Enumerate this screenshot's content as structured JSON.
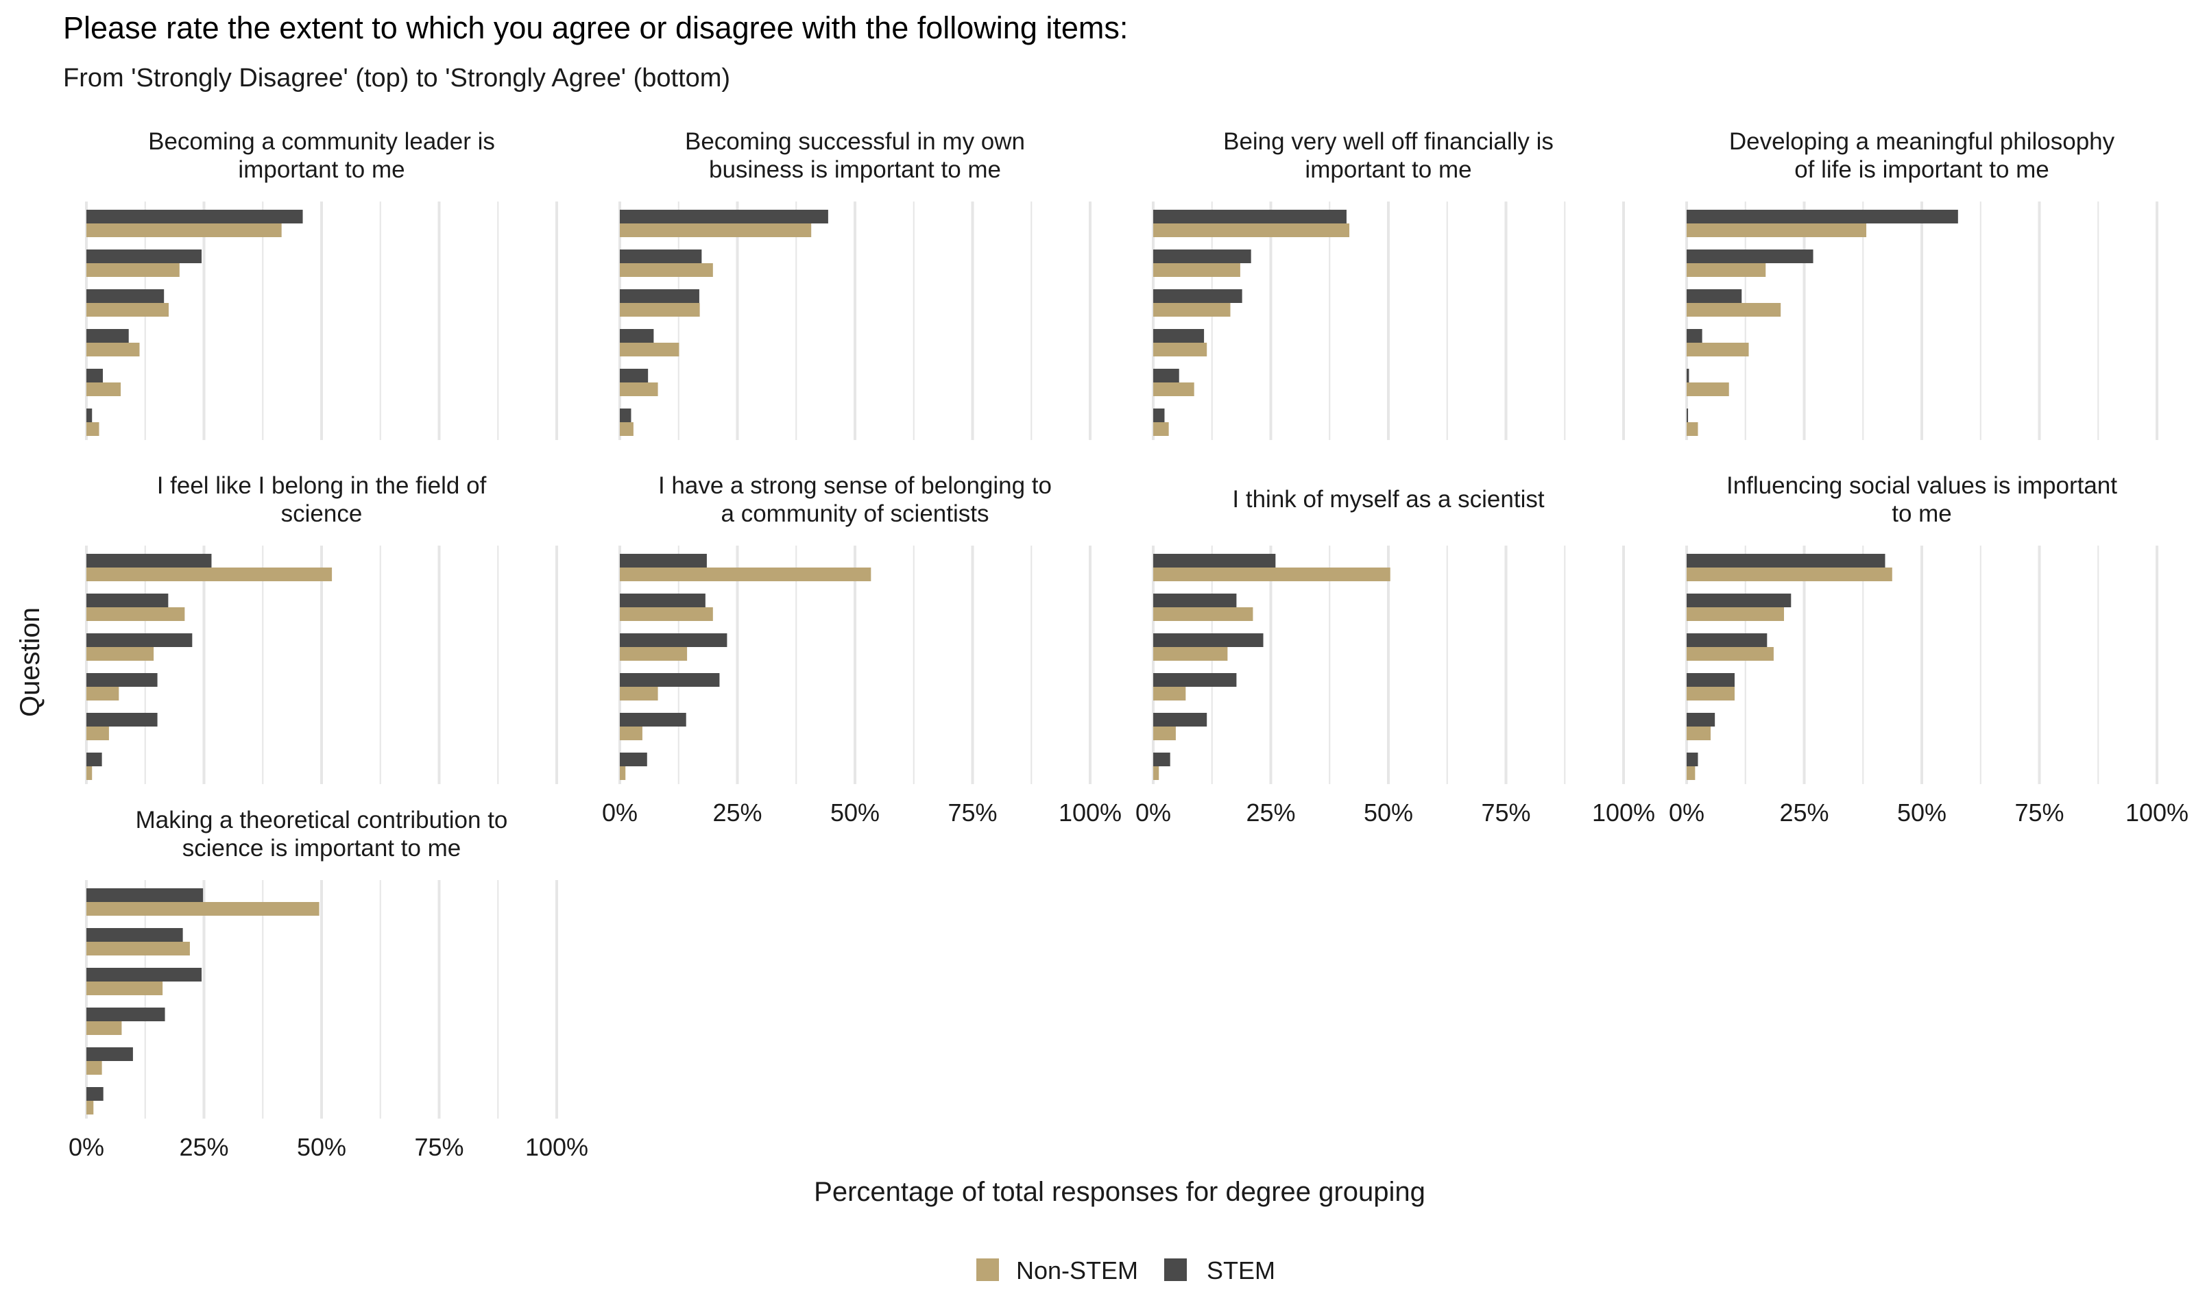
{
  "colors": {
    "Non-STEM": "#bba574",
    "STEM": "#4a4a4a",
    "grid": "#e6e6e6"
  },
  "chart_data": {
    "type": "bar",
    "orientation": "horizontal",
    "faceted": true,
    "title": "Please rate the extent to which you agree or disagree with the following items:",
    "subtitle": "From 'Strongly Disagree' (top) to 'Strongly Agree' (bottom)",
    "xlabel": "Percentage of total responses for degree grouping",
    "ylabel": "Question",
    "xlim": [
      0,
      100
    ],
    "x_ticks": [
      "0%",
      "25%",
      "50%",
      "75%",
      "100%"
    ],
    "grid": true,
    "legend": {
      "position": "bottom",
      "entries": [
        "Non-STEM",
        "STEM"
      ]
    },
    "response_levels": 6,
    "panels": [
      {
        "title": "Becoming a community leader is important to me",
        "title_lines": [
          "Becoming a community leader is",
          "important to me"
        ],
        "STEM": [
          46,
          24.5,
          16.5,
          9,
          3.5,
          1.2
        ],
        "Non-STEM": [
          41.5,
          19.8,
          17.5,
          11.3,
          7.3,
          2.7
        ]
      },
      {
        "title": "Becoming successful in my own business is important to me",
        "title_lines": [
          "Becoming successful in my own",
          "business is important to me"
        ],
        "STEM": [
          44.3,
          17.4,
          16.9,
          7.2,
          6,
          2.4
        ],
        "Non-STEM": [
          40.7,
          19.8,
          17,
          12.6,
          8.1,
          2.9
        ]
      },
      {
        "title": "Being very well off financially is important to me",
        "title_lines": [
          "Being very well off financially is",
          "important to me"
        ],
        "STEM": [
          41.1,
          20.8,
          18.9,
          10.8,
          5.5,
          2.4
        ],
        "Non-STEM": [
          41.7,
          18.5,
          16.4,
          11.4,
          8.7,
          3.3
        ]
      },
      {
        "title": "Developing a meaningful philosophy of life is important to me",
        "title_lines": [
          "Developing a meaningful philosophy",
          "of life is important to me"
        ],
        "STEM": [
          57.7,
          26.9,
          11.7,
          3.3,
          0.5,
          0.3
        ],
        "Non-STEM": [
          38.2,
          16.8,
          20,
          13.2,
          9,
          2.4
        ]
      },
      {
        "title": "I feel like I belong in the field of science",
        "title_lines": [
          "I feel like I belong in the field of",
          "science"
        ],
        "STEM": [
          26.6,
          17.4,
          22.5,
          15.1,
          15.1,
          3.3
        ],
        "Non-STEM": [
          52.2,
          20.9,
          14.3,
          6.9,
          4.8,
          1.2
        ]
      },
      {
        "title": "I have a strong sense of belonging to a community of scientists",
        "title_lines": [
          "I have a strong sense of belonging to",
          "a community of scientists"
        ],
        "STEM": [
          18.5,
          18.2,
          22.8,
          21.2,
          14.1,
          5.8
        ],
        "Non-STEM": [
          53.4,
          19.8,
          14.3,
          8.1,
          4.8,
          1.2
        ]
      },
      {
        "title": "I think of myself as a scientist",
        "title_lines": [
          "I think of myself as a scientist"
        ],
        "STEM": [
          26,
          17.7,
          23.4,
          17.7,
          11.4,
          3.6
        ],
        "Non-STEM": [
          50.4,
          21.2,
          15.8,
          6.9,
          4.8,
          1.2
        ]
      },
      {
        "title": "Influencing social values is important to me",
        "title_lines": [
          "Influencing social values is important",
          "to me"
        ],
        "STEM": [
          42.2,
          22.2,
          17.1,
          10.2,
          6,
          2.4
        ],
        "Non-STEM": [
          43.7,
          20.7,
          18.5,
          10.2,
          5.1,
          1.8
        ]
      },
      {
        "title": "Making a theoretical contribution to science is important to me",
        "title_lines": [
          "Making a theoretical contribution to",
          "science is important to me"
        ],
        "STEM": [
          24.8,
          20.5,
          24.5,
          16.7,
          9.9,
          3.6
        ],
        "Non-STEM": [
          49.5,
          22,
          16.2,
          7.5,
          3.3,
          1.5
        ]
      }
    ]
  }
}
